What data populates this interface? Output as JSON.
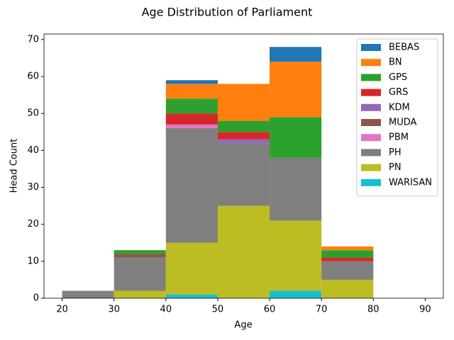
{
  "chart_data": {
    "type": "histogram",
    "title": "Age Distribution of Parliament",
    "xlabel": "Age",
    "ylabel": "Head Count",
    "bins": [
      20,
      30,
      40,
      50,
      60,
      70,
      80,
      90
    ],
    "stacked": true,
    "series": [
      {
        "name": "BEBAS",
        "color": "#1f77b4",
        "values": [
          0,
          0,
          1,
          0,
          4,
          0,
          0
        ]
      },
      {
        "name": "BN",
        "color": "#ff7f0e",
        "values": [
          0,
          0,
          4,
          10,
          15,
          1,
          0
        ]
      },
      {
        "name": "GPS",
        "color": "#2ca02c",
        "values": [
          0,
          1,
          4,
          3,
          11,
          2,
          0
        ]
      },
      {
        "name": "GRS",
        "color": "#d62728",
        "values": [
          0,
          0,
          3,
          2,
          0,
          1,
          0
        ]
      },
      {
        "name": "KDM",
        "color": "#9467bd",
        "values": [
          0,
          0,
          0,
          1,
          0,
          0,
          0
        ]
      },
      {
        "name": "MUDA",
        "color": "#8c564b",
        "values": [
          0,
          1,
          0,
          0,
          0,
          0,
          0
        ]
      },
      {
        "name": "PBM",
        "color": "#e377c2",
        "values": [
          0,
          0,
          1,
          0,
          0,
          0,
          0
        ]
      },
      {
        "name": "PH",
        "color": "#7f7f7f",
        "values": [
          2,
          9,
          31,
          17,
          17,
          5,
          0
        ]
      },
      {
        "name": "PN",
        "color": "#bcbd22",
        "values": [
          0,
          2,
          14,
          25,
          19,
          5,
          0
        ]
      },
      {
        "name": "WARISAN",
        "color": "#17becf",
        "values": [
          0,
          0,
          1,
          0,
          2,
          0,
          0
        ]
      }
    ],
    "xlim": [
      16.5,
      93.5
    ],
    "xticks": [
      20,
      30,
      40,
      50,
      60,
      70,
      80,
      90
    ],
    "ylim": [
      0,
      71.5
    ],
    "yticks": [
      0,
      10,
      20,
      30,
      40,
      50,
      60,
      70
    ],
    "grid": false,
    "legend": "upper right"
  }
}
